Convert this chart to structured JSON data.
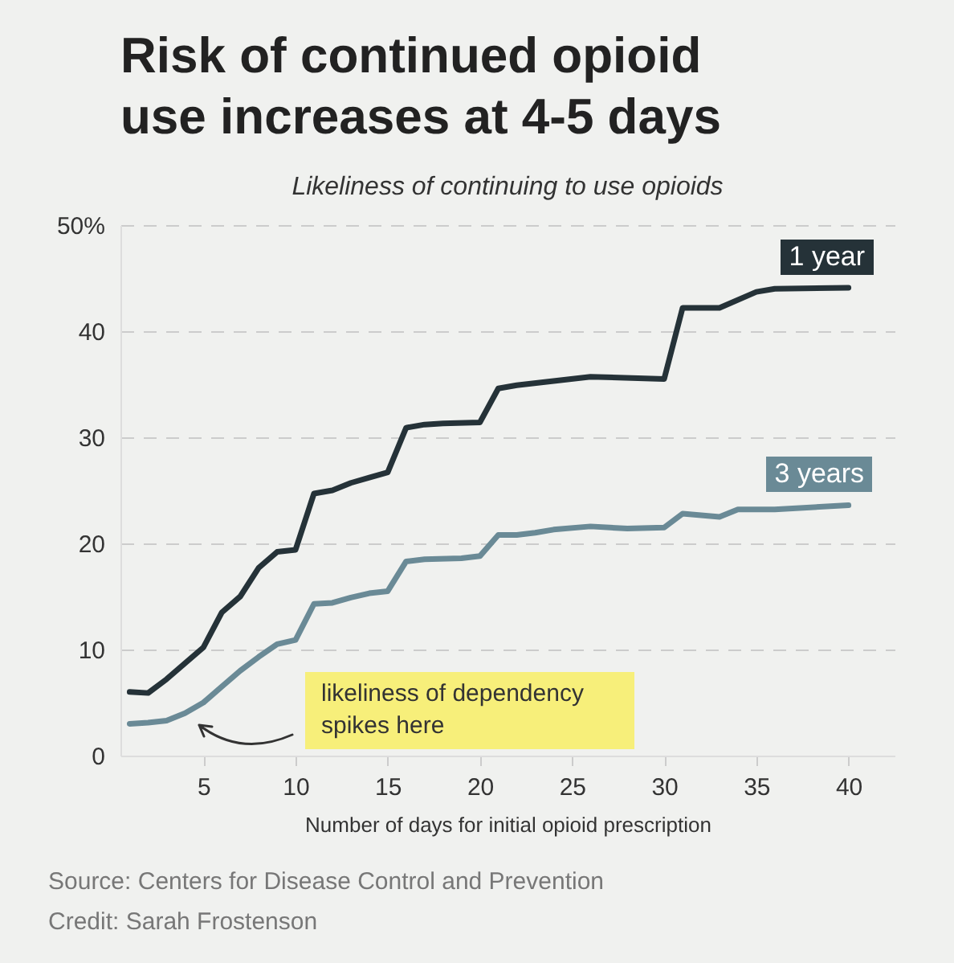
{
  "chart_data": {
    "type": "line",
    "title": "Risk of continued opioid use increases at 4-5 days",
    "subtitle": "Likeliness of continuing to use opioids",
    "xlabel": "Number of days for initial opioid prescription",
    "series": [
      {
        "name": "1 year",
        "color": "#253238",
        "x": [
          1,
          2,
          3,
          4,
          5,
          6,
          7,
          8,
          9,
          10,
          11,
          12,
          13,
          14,
          15,
          16,
          17,
          18,
          20,
          21,
          22,
          24,
          26,
          30,
          31,
          33,
          35,
          36,
          40
        ],
        "values": [
          6,
          5.9,
          7.2,
          8.7,
          10.2,
          13.5,
          15,
          17.7,
          19.2,
          19.4,
          24.7,
          25,
          25.7,
          26.2,
          26.7,
          30.9,
          31.2,
          31.3,
          31.4,
          34.6,
          34.9,
          35.3,
          35.7,
          35.5,
          42.2,
          42.2,
          43.7,
          44,
          44.1
        ]
      },
      {
        "name": "3 years",
        "color": "#6a8a96",
        "x": [
          1,
          2,
          3,
          4,
          5,
          6,
          7,
          8,
          9,
          10,
          11,
          12,
          13,
          14,
          15,
          16,
          17,
          19,
          20,
          21,
          22,
          23,
          24,
          26,
          28,
          30,
          31,
          33,
          34,
          36,
          40
        ],
        "values": [
          3,
          3.1,
          3.3,
          4,
          5,
          6.5,
          8,
          9.3,
          10.5,
          10.9,
          14.3,
          14.4,
          14.9,
          15.3,
          15.5,
          18.3,
          18.5,
          18.6,
          18.8,
          20.8,
          20.8,
          21,
          21.3,
          21.6,
          21.4,
          21.5,
          22.8,
          22.5,
          23.2,
          23.2,
          23.6
        ]
      }
    ],
    "xlim": [
      0.5,
      42.5
    ],
    "xticks": [
      5,
      10,
      15,
      20,
      25,
      30,
      35,
      40
    ],
    "ylim": [
      0,
      50
    ],
    "yticks": [
      0,
      10,
      20,
      30,
      40,
      {
        "value": 50,
        "label": "50%"
      }
    ],
    "grid": "y",
    "line_style": "solid",
    "annotations": [
      "likeliness of dependency spikes here",
      "Source: Centers for Disease Control and Prevention",
      "Credit: Sarah Frostenson"
    ]
  }
}
